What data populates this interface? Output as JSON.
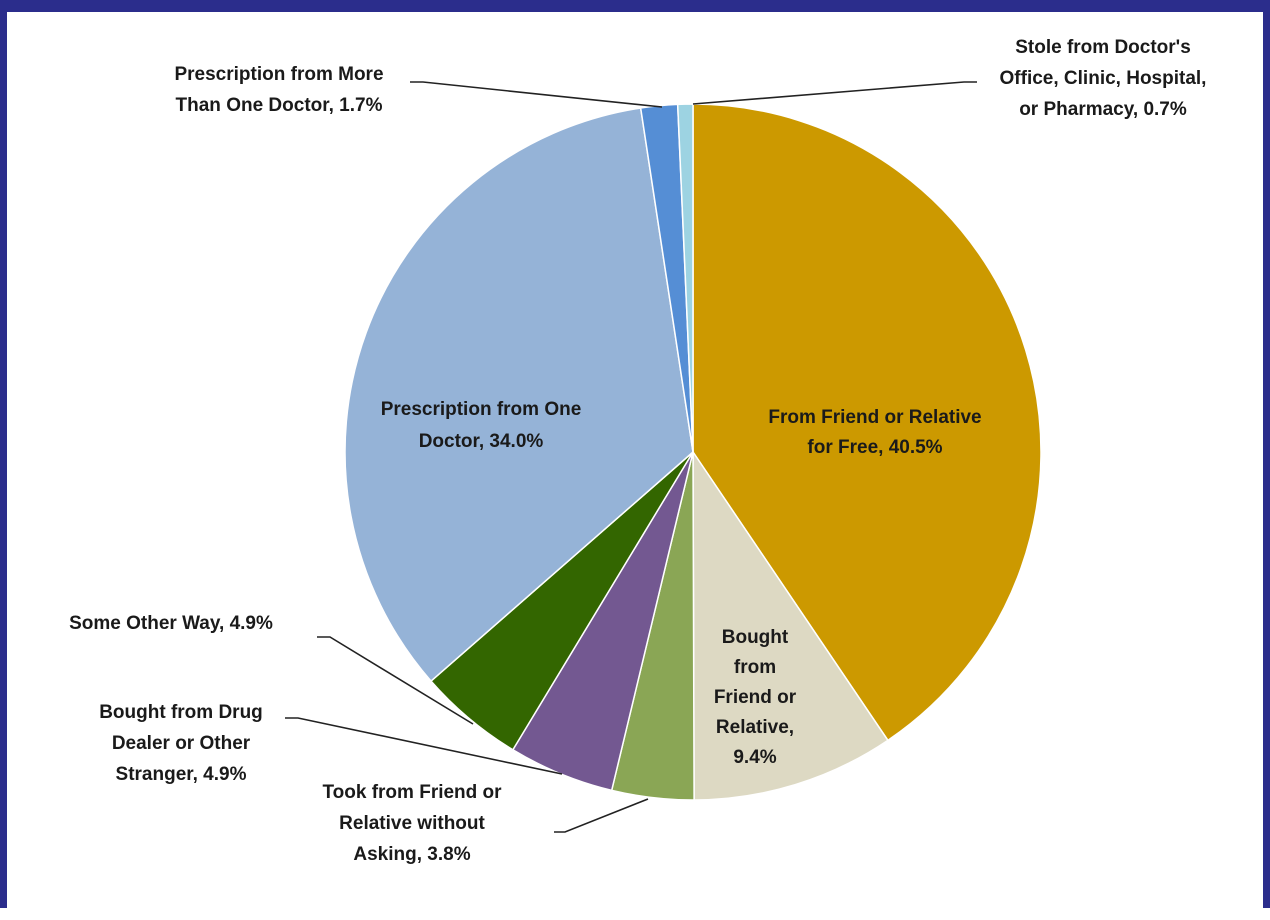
{
  "chart_data": {
    "type": "pie",
    "title": "",
    "slices": [
      {
        "label": "From Friend or Relative for Free",
        "value": 40.5,
        "value_text": "40.5%",
        "color": "#cc9900",
        "label_lines": [
          "From Friend or Relative",
          "for Free, 40.5%"
        ]
      },
      {
        "label": "Bought from Friend or Relative",
        "value": 9.4,
        "value_text": "9.4%",
        "color": "#ddd9c3",
        "label_lines": [
          "Bought",
          "from",
          "Friend or",
          "Relative,",
          "9.4%"
        ]
      },
      {
        "label": "Took from Friend or Relative without Asking",
        "value": 3.8,
        "value_text": "3.8%",
        "color": "#8aa655",
        "label_lines": [
          "Took from Friend or",
          "Relative without",
          "Asking, 3.8%"
        ]
      },
      {
        "label": "Bought from Drug Dealer or Other Stranger",
        "value": 4.9,
        "value_text": "4.9%",
        "color": "#735891",
        "label_lines": [
          "Bought from Drug",
          "Dealer or Other",
          "Stranger, 4.9%"
        ]
      },
      {
        "label": "Some Other Way",
        "value": 4.9,
        "value_text": "4.9%",
        "color": "#336600",
        "label_lines": [
          "Some Other Way, 4.9%"
        ]
      },
      {
        "label": "Prescription from One Doctor",
        "value": 34.0,
        "value_text": "34.0%",
        "color": "#95b3d7",
        "label_lines": [
          "Prescription from One",
          "Doctor, 34.0%"
        ]
      },
      {
        "label": "Prescription from More Than One Doctor",
        "value": 1.7,
        "value_text": "1.7%",
        "color": "#558ed5",
        "label_lines": [
          "Prescription from More",
          "Than One Doctor, 1.7%"
        ]
      },
      {
        "label": "Stole from Doctor's Office, Clinic, Hospital, or Pharmacy",
        "value": 0.7,
        "value_text": "0.7%",
        "color": "#9dd3e2",
        "label_lines": [
          "Stole from Doctor's",
          "Office, Clinic, Hospital,",
          "or Pharmacy, 0.7%"
        ]
      }
    ],
    "start": "12 o'clock",
    "direction": "clockwise"
  }
}
